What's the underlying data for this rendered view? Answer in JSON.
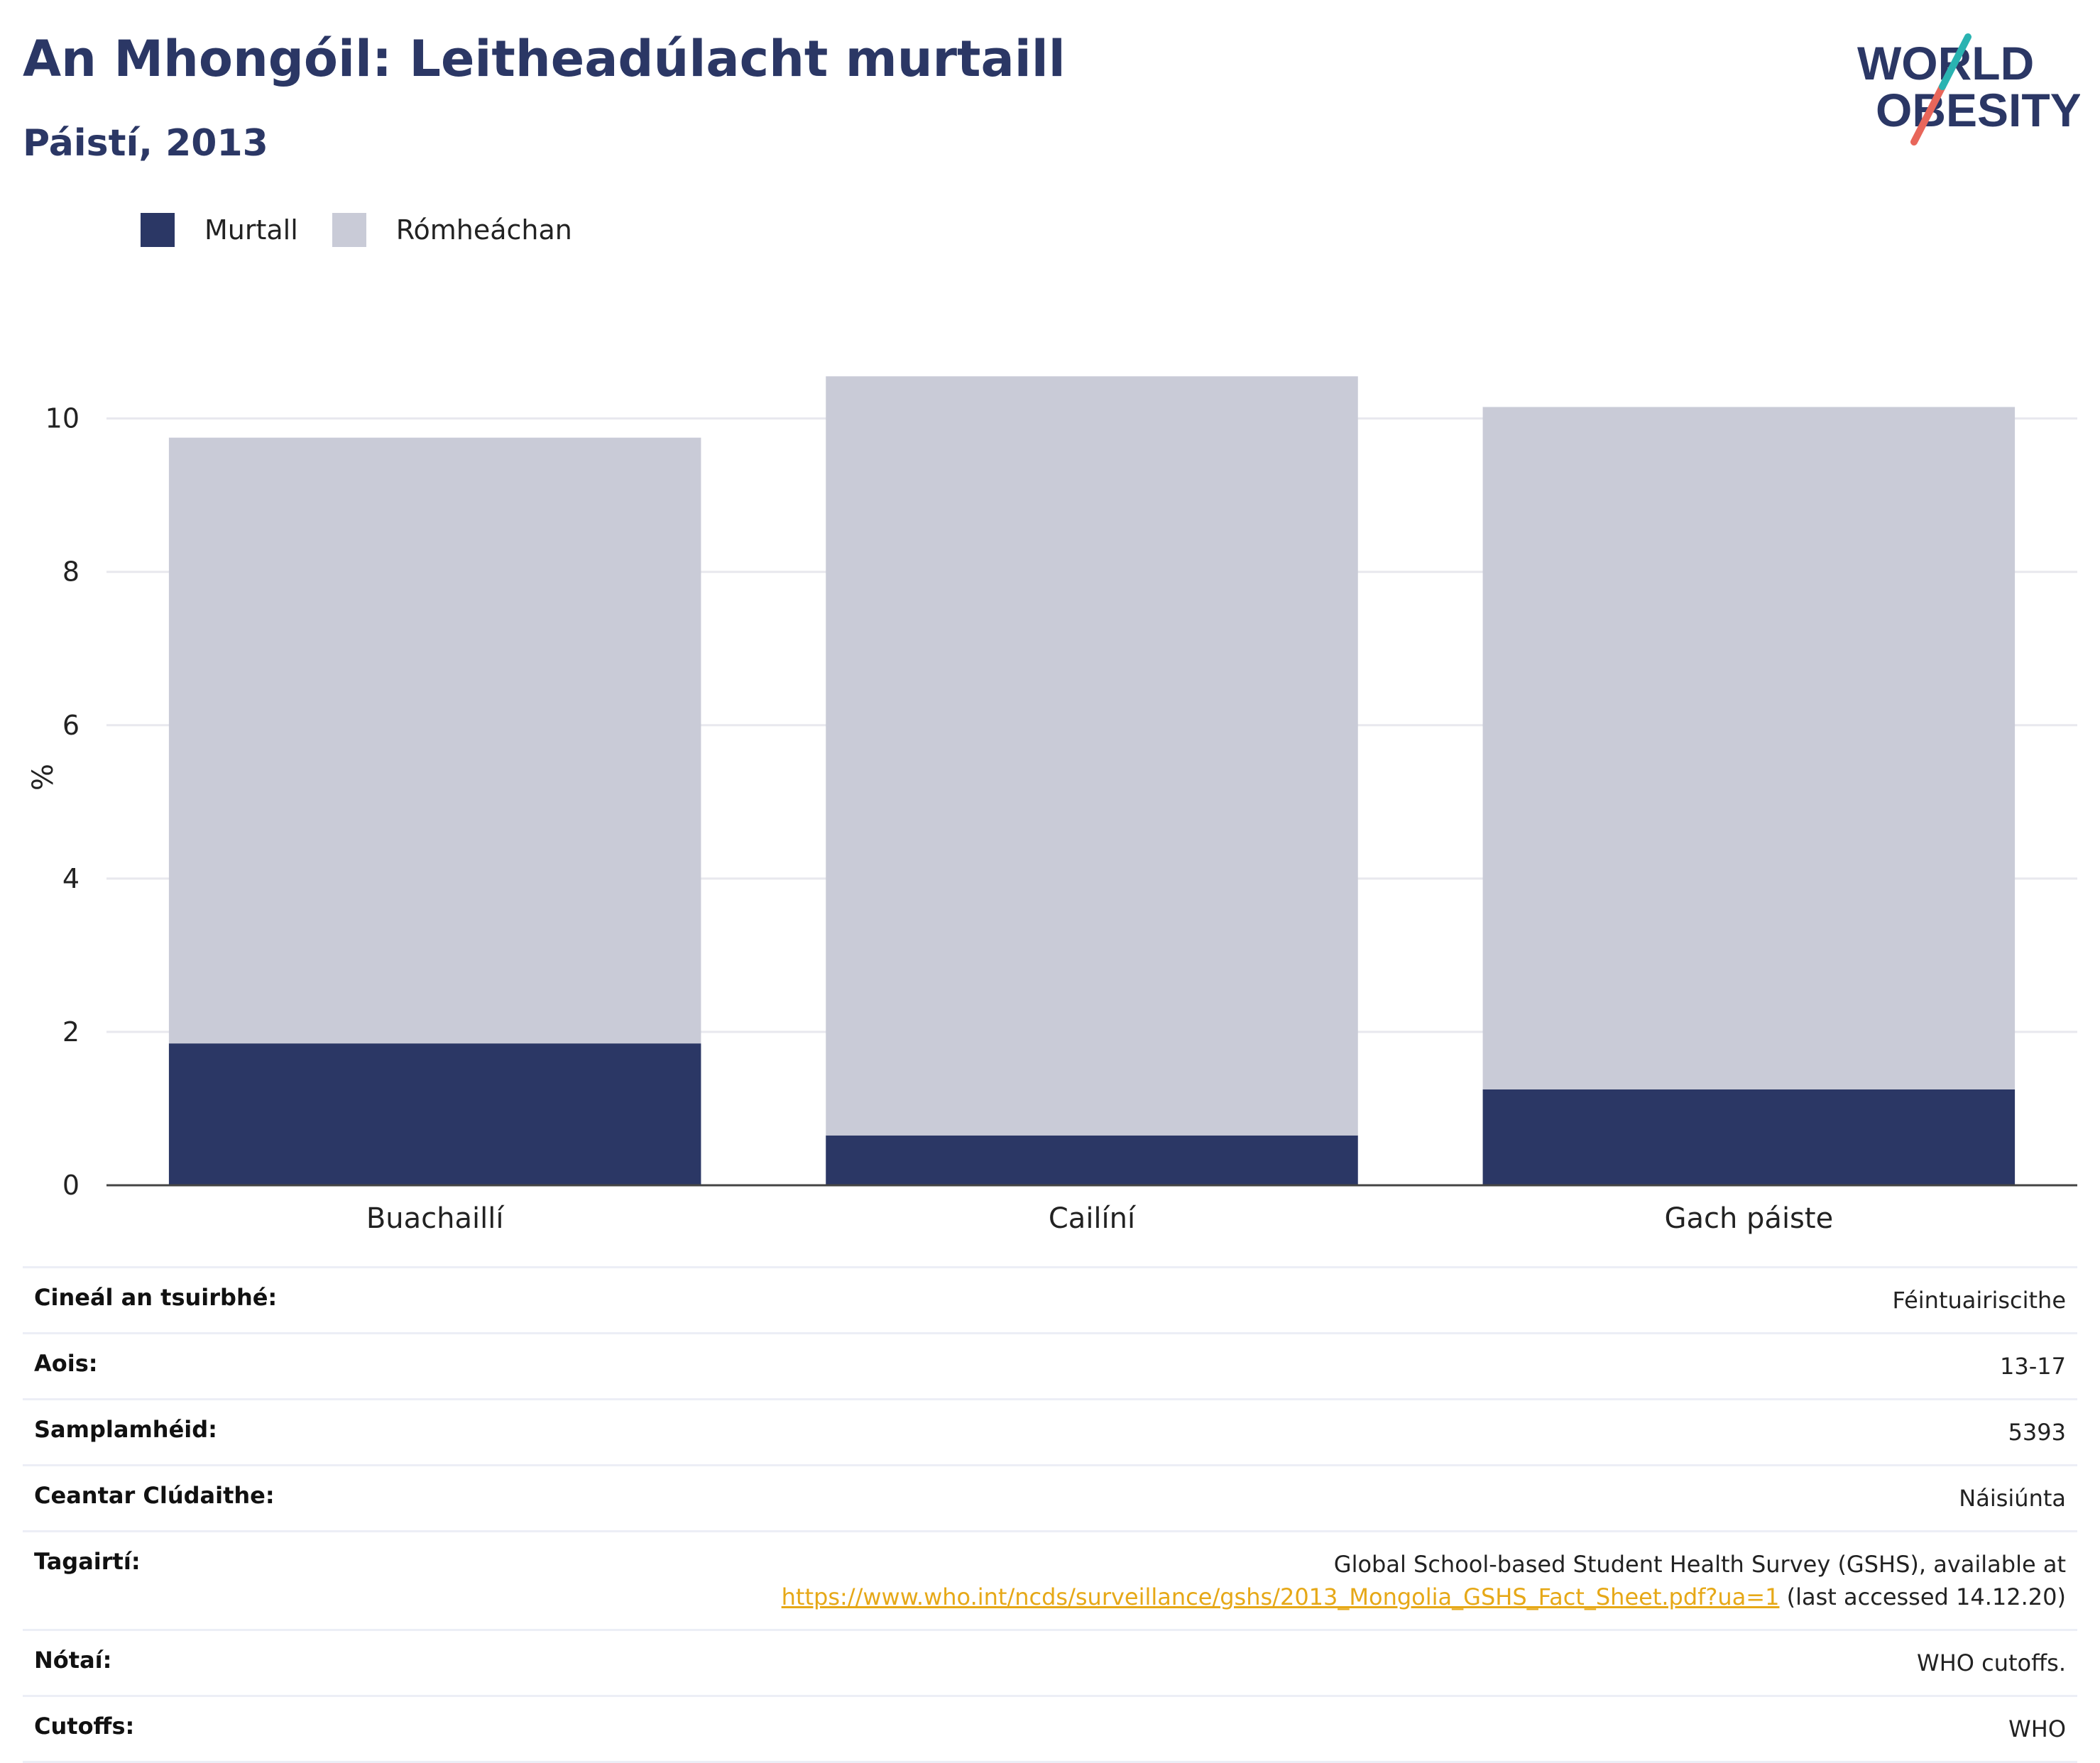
{
  "header": {
    "title": "An Mhongóil: Leitheadúlacht murtaill",
    "subtitle": "Páistí, 2013"
  },
  "logo": {
    "line1": "WORLD",
    "line2": "OBESITY"
  },
  "colors": {
    "obese": "#2b3765",
    "overweight": "#c9cbd7",
    "accent_orange": "#e6a817",
    "logo_teal": "#2ab3b1",
    "logo_red": "#e8665a"
  },
  "chart_data": {
    "type": "bar",
    "stacked": true,
    "categories": [
      "Buachaillí",
      "Cailíní",
      "Gach páiste"
    ],
    "series": [
      {
        "name": "Murtall",
        "values": [
          1.85,
          0.65,
          1.25
        ]
      },
      {
        "name": "Rómheáchan",
        "values": [
          7.9,
          9.9,
          8.9
        ]
      }
    ],
    "ylabel": "%",
    "ylim": [
      0,
      11.2
    ],
    "yticks": [
      0,
      2,
      4,
      6,
      8,
      10
    ],
    "grid": true,
    "legend": "top-left"
  },
  "info": [
    {
      "label": "Cineál an tsuirbhé:",
      "value": "Féintuairiscithe"
    },
    {
      "label": "Aois:",
      "value": "13-17"
    },
    {
      "label": "Samplamhéid:",
      "value": "5393"
    },
    {
      "label": "Ceantar Clúdaithe:",
      "value": "Náisiúnta"
    },
    {
      "label": "Tagairtí:",
      "value_line1": "Global School-based Student Health Survey (GSHS), available at",
      "link": "https://www.who.int/ncds/surveillance/gshs/2013_Mongolia_GSHS_Fact_Sheet.pdf?ua=1",
      "value_suffix": " (last accessed 14.12.20)"
    },
    {
      "label": "Nótaí:",
      "value": "WHO cutoffs."
    },
    {
      "label": "Cutoffs:",
      "value": "WHO"
    }
  ]
}
